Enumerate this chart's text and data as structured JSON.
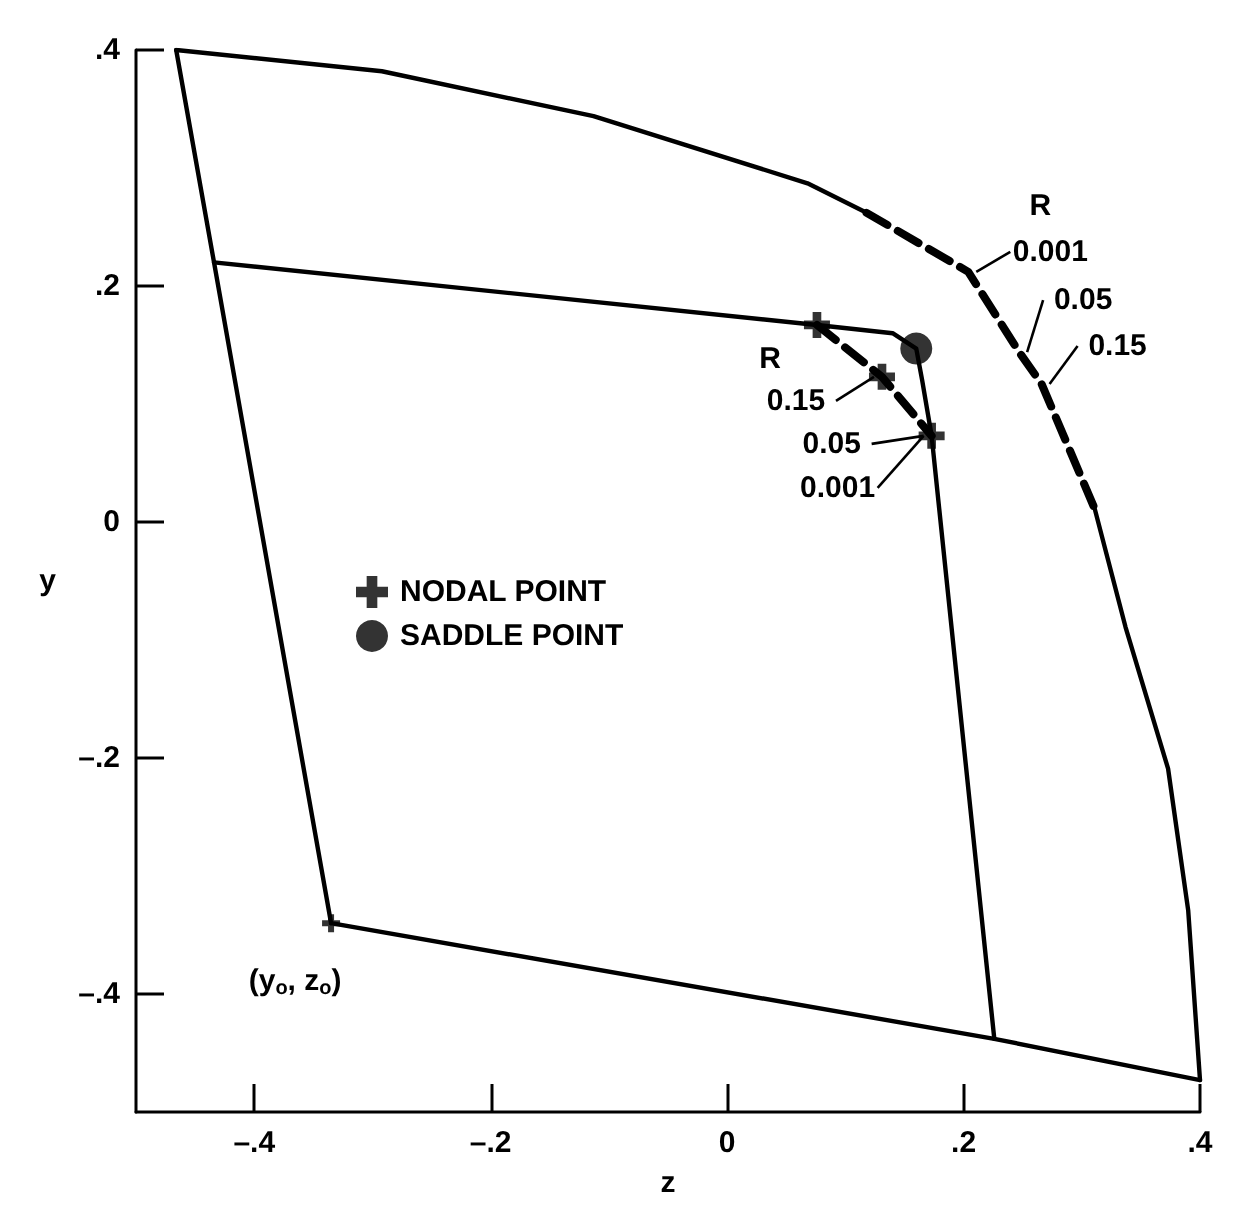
{
  "chart_data": {
    "type": "line",
    "xlabel": "z",
    "ylabel": "y",
    "xlim": [
      -0.5,
      0.4
    ],
    "ylim": [
      -0.5,
      0.4
    ],
    "xticks": [
      {
        "value": -0.4,
        "label": "–.4"
      },
      {
        "value": -0.2,
        "label": "–.2"
      },
      0,
      {
        "value": 0.2,
        "label": ".2"
      },
      {
        "value": 0.4,
        "label": ".4"
      }
    ],
    "yticks": [
      {
        "value": -0.4,
        "label": "–.4"
      },
      {
        "value": -0.2,
        "label": "–.2"
      },
      0,
      {
        "value": 0.2,
        "label": ".2"
      },
      {
        "value": 0.4,
        "label": ".4"
      }
    ],
    "grid": false,
    "legend": "left",
    "marker": "none",
    "line_style": "solid",
    "series": [
      {
        "color": "#000000",
        "x": [
          -0.466,
          -0.434,
          -0.335
        ],
        "values": [
          0.4,
          0.22,
          -0.34
        ]
      },
      {
        "color": "#000000",
        "x": [
          -0.466,
          -0.292,
          -0.113,
          0.068,
          0.118
        ],
        "values": [
          0.4,
          0.382,
          0.344,
          0.287,
          0.262
        ]
      },
      {
        "color": "#000000",
        "line_style": "dashed",
        "x": [
          0.118,
          0.204,
          0.247,
          0.266,
          0.311
        ],
        "values": [
          0.262,
          0.212,
          0.144,
          0.117,
          0.011
        ]
      },
      {
        "color": "#000000",
        "x": [
          0.311,
          0.337,
          0.373,
          0.39,
          0.4
        ],
        "values": [
          0.011,
          -0.089,
          -0.209,
          -0.329,
          -0.473
        ]
      },
      {
        "color": "#000000",
        "x": [
          -0.335,
          0.226,
          0.4
        ],
        "values": [
          -0.34,
          -0.438,
          -0.473
        ]
      },
      {
        "color": "#000000",
        "x": [
          -0.434,
          0.076,
          0.14,
          0.16,
          0.165,
          0.173,
          0.226
        ],
        "values": [
          0.22,
          0.167,
          0.16,
          0.147,
          0.12,
          0.073,
          -0.438
        ]
      },
      {
        "color": "#000000",
        "line_style": "dashed",
        "x": [
          0.076,
          0.131,
          0.173
        ],
        "values": [
          0.167,
          0.123,
          0.073
        ]
      },
      {
        "type": "scatter",
        "color": "#000000",
        "marker": "cross",
        "x": [
          -0.335
        ],
        "values": [
          -0.34
        ]
      },
      {
        "type": "scatter",
        "name": "NODAL POINT",
        "color": "#000000",
        "marker": "cross",
        "x": [
          0.076,
          0.131,
          0.173
        ],
        "values": [
          0.167,
          0.123,
          0.073
        ]
      },
      {
        "type": "scatter",
        "name": "SADDLE POINT",
        "color": "#000000",
        "marker": "circle",
        "x": [
          0.16
        ],
        "values": [
          0.147
        ]
      }
    ],
    "annotations": [
      "R",
      {
        "text": "0.001",
        "x": 0.204,
        "y": 0.212
      },
      {
        "text": "0.05",
        "x": 0.247,
        "y": 0.144
      },
      {
        "text": "0.15",
        "x": 0.266,
        "y": 0.117
      },
      "R",
      {
        "text": "0.15",
        "x": 0.131,
        "y": 0.123
      },
      {
        "text": "0.05",
        "x": 0.173,
        "y": 0.073
      },
      {
        "text": "0.001",
        "x": 0.173,
        "y": 0.073
      },
      {
        "text": "(y$_{o}$, z$_{o}$)",
        "x": -0.335,
        "y": -0.34
      }
    ]
  }
}
